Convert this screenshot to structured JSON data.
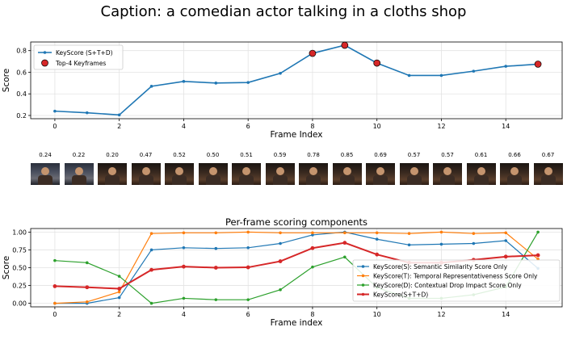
{
  "title": "Caption: a comedian actor talking in a cloths shop",
  "frame_scores": [
    "0.24",
    "0.22",
    "0.20",
    "0.47",
    "0.52",
    "0.50",
    "0.51",
    "0.59",
    "0.78",
    "0.85",
    "0.69",
    "0.57",
    "0.57",
    "0.61",
    "0.66",
    "0.67"
  ],
  "chart_data": [
    {
      "type": "line",
      "title": "",
      "xlabel": "Frame Index",
      "ylabel": "Score",
      "xlim": [
        -0.75,
        15.75
      ],
      "ylim": [
        0.17,
        0.88
      ],
      "xticks": [
        0,
        2,
        4,
        6,
        8,
        10,
        12,
        14
      ],
      "yticks": [
        0.2,
        0.4,
        0.6,
        0.8
      ],
      "grid": true,
      "legend": "top-left",
      "x": [
        0,
        1,
        2,
        3,
        4,
        5,
        6,
        7,
        8,
        9,
        10,
        11,
        12,
        13,
        14,
        15
      ],
      "series": [
        {
          "name": "KeyScore (S+T+D)",
          "color": "#1f77b4",
          "values": [
            0.24,
            0.225,
            0.205,
            0.47,
            0.515,
            0.5,
            0.505,
            0.59,
            0.775,
            0.85,
            0.685,
            0.57,
            0.57,
            0.61,
            0.655,
            0.675
          ]
        }
      ],
      "highlight": {
        "name": "Top-4 Keyframes",
        "color": "#d62728",
        "indices": [
          8,
          9,
          10,
          15
        ]
      }
    },
    {
      "type": "line",
      "title": "Per-frame scoring components",
      "xlabel": "Frame index",
      "ylabel": "Score",
      "xlim": [
        -0.75,
        15.75
      ],
      "ylim": [
        -0.05,
        1.05
      ],
      "xticks": [
        0,
        2,
        4,
        6,
        8,
        10,
        12,
        14
      ],
      "yticks": [
        0.0,
        0.25,
        0.5,
        0.75,
        1.0
      ],
      "grid": true,
      "legend": "lower-right",
      "x": [
        0,
        1,
        2,
        3,
        4,
        5,
        6,
        7,
        8,
        9,
        10,
        11,
        12,
        13,
        14,
        15
      ],
      "series": [
        {
          "name": "KeyScore(S): Semantic Similarity Score Only",
          "color": "#1f77b4",
          "values": [
            0.0,
            0.0,
            0.08,
            0.75,
            0.78,
            0.77,
            0.78,
            0.84,
            0.96,
            1.0,
            0.9,
            0.82,
            0.83,
            0.84,
            0.88,
            0.49
          ]
        },
        {
          "name": "KeyScore(T): Temporal Representativeness Score Only",
          "color": "#ff7f0e",
          "values": [
            0.0,
            0.02,
            0.16,
            0.98,
            0.99,
            0.99,
            1.0,
            0.99,
            0.99,
            0.99,
            0.99,
            0.98,
            1.0,
            0.98,
            0.99,
            0.62
          ]
        },
        {
          "name": "KeyScore(D): Contextual Drop Impact Score Only",
          "color": "#2ca02c",
          "values": [
            0.6,
            0.57,
            0.38,
            0.0,
            0.07,
            0.05,
            0.05,
            0.19,
            0.51,
            0.65,
            0.22,
            0.07,
            0.07,
            0.12,
            0.23,
            1.0
          ]
        },
        {
          "name": "KeyScore(S+T+D)",
          "color": "#d62728",
          "values": [
            0.24,
            0.225,
            0.205,
            0.47,
            0.515,
            0.5,
            0.505,
            0.59,
            0.775,
            0.85,
            0.685,
            0.57,
            0.57,
            0.61,
            0.655,
            0.675
          ]
        }
      ]
    }
  ]
}
